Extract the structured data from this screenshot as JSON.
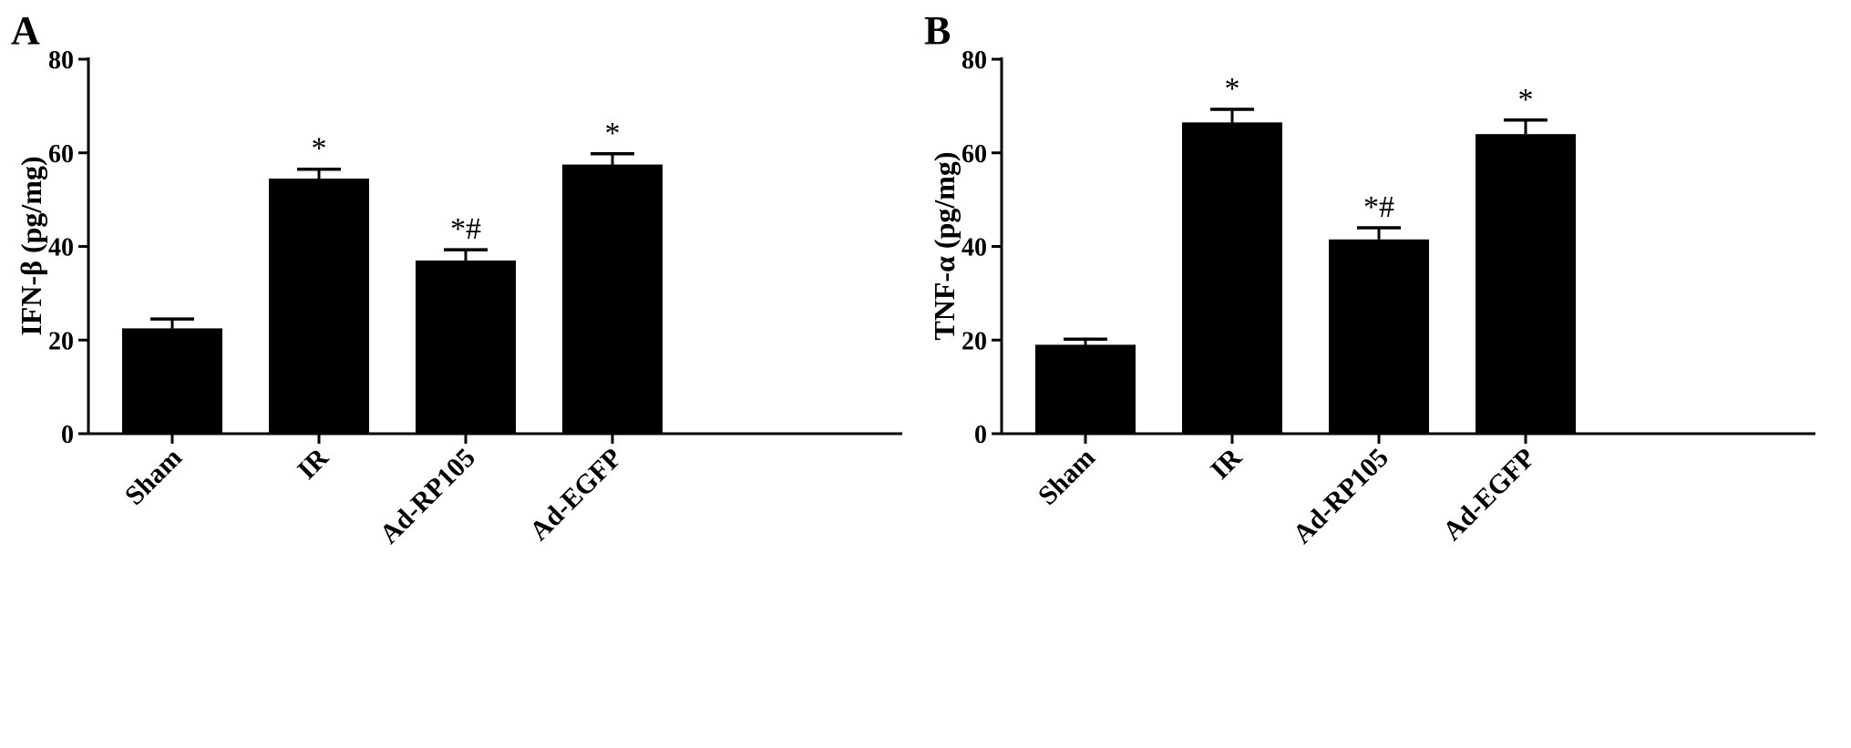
{
  "chart_data": [
    {
      "panel": "A",
      "type": "bar",
      "ylabel": "IFN-β (pg/mg)",
      "categories": [
        "Sham",
        "IR",
        "Ad-RP105",
        "Ad-EGFP"
      ],
      "values": [
        22.5,
        54.5,
        37.0,
        57.5
      ],
      "errors": [
        2.0,
        2.0,
        2.3,
        2.3
      ],
      "annotations": [
        "",
        "*",
        "*#",
        "*"
      ],
      "ylim": [
        0,
        80
      ],
      "yticks": [
        0,
        20,
        40,
        60,
        80
      ],
      "bar_color": "#000000",
      "grid": false
    },
    {
      "panel": "B",
      "type": "bar",
      "ylabel": "TNF-α (pg/mg)",
      "categories": [
        "Sham",
        "IR",
        "Ad-RP105",
        "Ad-EGFP"
      ],
      "values": [
        19.0,
        66.5,
        41.5,
        64.0
      ],
      "errors": [
        1.2,
        2.8,
        2.5,
        3.0
      ],
      "annotations": [
        "",
        "*",
        "*#",
        "*"
      ],
      "ylim": [
        0,
        80
      ],
      "yticks": [
        0,
        20,
        40,
        60,
        80
      ],
      "bar_color": "#000000",
      "grid": false
    }
  ]
}
